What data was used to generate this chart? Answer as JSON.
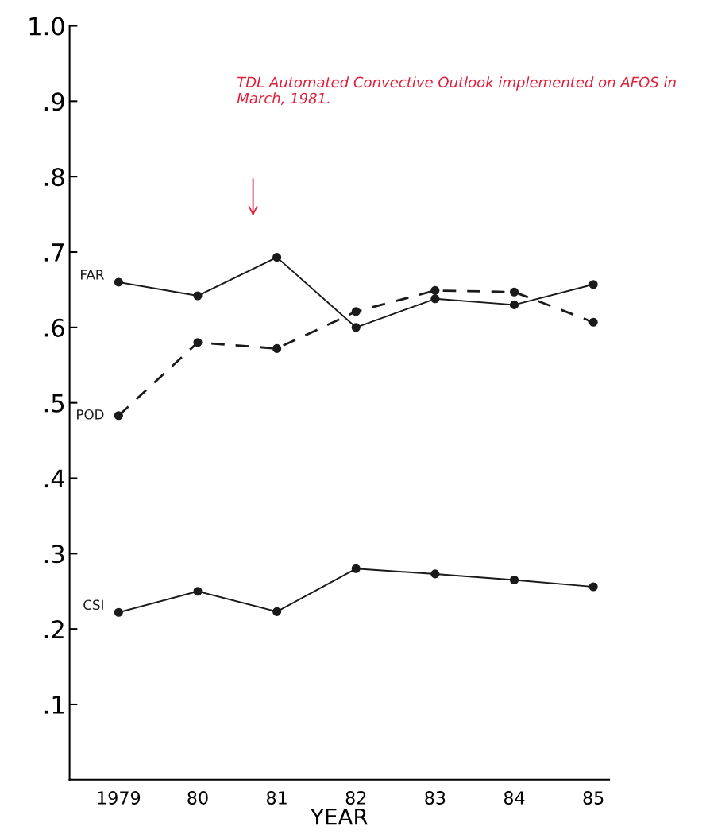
{
  "chart_data": {
    "type": "line",
    "categories": [
      "1979",
      "80",
      "81",
      "82",
      "83",
      "84",
      "85"
    ],
    "xlabel": "YEAR",
    "ylim": [
      0,
      1.0
    ],
    "yticks": [
      {
        "value": 0.1,
        "label": ".1"
      },
      {
        "value": 0.2,
        "label": ".2"
      },
      {
        "value": 0.3,
        "label": ".3"
      },
      {
        "value": 0.4,
        "label": ".4"
      },
      {
        "value": 0.5,
        "label": ".5"
      },
      {
        "value": 0.6,
        "label": ".6"
      },
      {
        "value": 0.7,
        "label": ".7"
      },
      {
        "value": 0.8,
        "label": ".8"
      },
      {
        "value": 0.9,
        "label": ".9"
      },
      {
        "value": 1.0,
        "label": "1.0"
      }
    ],
    "marker": "circle",
    "grid": false,
    "legend": false,
    "series": [
      {
        "name": "FAR",
        "color": "#1a1a1a",
        "line_style": "solid",
        "values": [
          0.66,
          0.642,
          0.693,
          0.6,
          0.638,
          0.63,
          0.657
        ]
      },
      {
        "name": "POD",
        "color": "#1a1a1a",
        "line_style": "dashed",
        "values": [
          0.483,
          0.58,
          0.572,
          0.621,
          0.649,
          0.647,
          0.607
        ]
      },
      {
        "name": "CSI",
        "color": "#1a1a1a",
        "line_style": "solid",
        "values": [
          0.222,
          0.25,
          0.223,
          0.28,
          0.273,
          0.265,
          0.256
        ]
      }
    ],
    "annotations": [
      "TDL Automated Convective Outlook implemented on AFOS in March, 1981."
    ]
  }
}
